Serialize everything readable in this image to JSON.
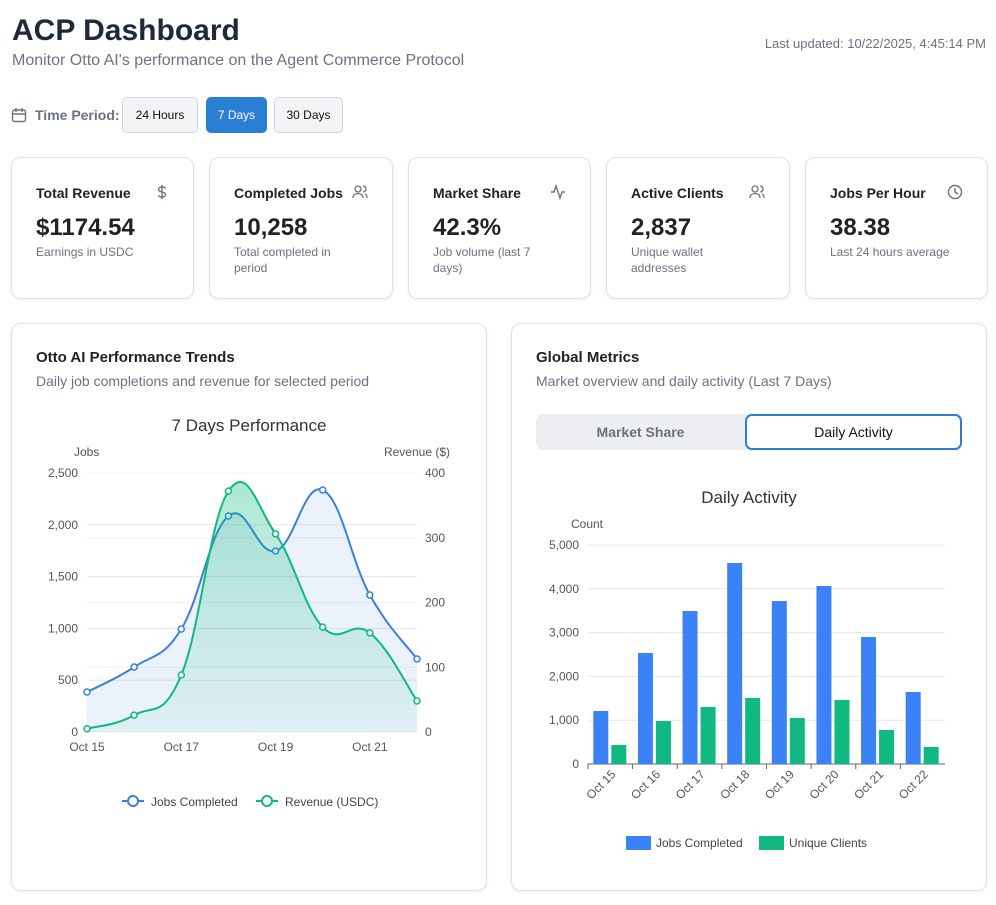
{
  "header": {
    "title": "ACP Dashboard",
    "subtitle": "Monitor Otto AI's performance on the Agent Commerce Protocol",
    "last_updated": "Last updated: 10/22/2025, 4:45:14 PM"
  },
  "time_period": {
    "label": "Time Period:",
    "options": [
      "24 Hours",
      "7 Days",
      "30 Days"
    ]
  },
  "cards": [
    {
      "title": "Total Revenue",
      "value": "$1174.54",
      "note": "Earnings in USDC"
    },
    {
      "title": "Completed Jobs",
      "value": "10,258",
      "note": "Total completed in period"
    },
    {
      "title": "Market Share",
      "value": "42.3%",
      "note": "Job volume (last 7 days)"
    },
    {
      "title": "Active Clients",
      "value": "2,837",
      "note": "Unique wallet addresses"
    },
    {
      "title": "Jobs Per Hour",
      "value": "38.38",
      "note": "Last 24 hours average"
    }
  ],
  "panels": {
    "performance": {
      "title": "Otto AI Performance Trends",
      "subtitle": "Daily job completions and revenue for selected period"
    },
    "global": {
      "title": "Global Metrics",
      "subtitle": "Market overview and daily activity (Last 7 Days)",
      "tabs": [
        "Market Share",
        "Daily Activity"
      ]
    }
  },
  "chart_data": [
    {
      "type": "line",
      "title": "7 Days Performance",
      "y_label": "Jobs",
      "y2_label": "Revenue ($)",
      "categories": [
        "Oct 15",
        null,
        "Oct 17",
        null,
        "Oct 19",
        null,
        "Oct 21",
        null
      ],
      "series": [
        {
          "name": "Jobs Completed",
          "color": "#3b7fd9",
          "values": [
            386,
            627,
            994,
            2085,
            1747,
            2336,
            1322,
            705
          ]
        },
        {
          "name": "Revenue (USDC)",
          "color": "#10b981",
          "axis": "y2",
          "values": [
            5,
            26,
            88,
            372,
            306,
            162,
            153,
            48
          ]
        }
      ],
      "ylim": [
        0,
        2500
      ],
      "yticks": [
        0,
        500,
        {
          "value": 1000,
          "label": "1,000"
        },
        {
          "value": 1500,
          "label": "1,500"
        },
        {
          "value": 2000,
          "label": "2,000"
        },
        {
          "value": 2500,
          "label": "2,500"
        }
      ],
      "y2lim": [
        0,
        400
      ],
      "y2ticks": [
        0,
        100,
        200,
        300,
        400
      ],
      "grid": true
    },
    {
      "type": "bar",
      "title": "Daily Activity",
      "y_label": "Count",
      "categories": [
        "Oct 15",
        "Oct 16",
        "Oct 17",
        "Oct 18",
        "Oct 19",
        "Oct 20",
        "Oct 21",
        "Oct 22"
      ],
      "series": [
        {
          "name": "Jobs Completed",
          "color": "#3b82f6",
          "values": [
            1210,
            2534,
            3493,
            4589,
            3721,
            4064,
            2900,
            1644
          ]
        },
        {
          "name": "Unique Clients",
          "color": "#10b981",
          "values": [
            434,
            982,
            1301,
            1507,
            1050,
            1461,
            776,
            388
          ]
        }
      ],
      "ylim": [
        0,
        5000
      ],
      "yticks": [
        0,
        {
          "value": 1000,
          "label": "1,000"
        },
        {
          "value": 2000,
          "label": "2,000"
        },
        {
          "value": 3000,
          "label": "3,000"
        },
        {
          "value": 4000,
          "label": "4,000"
        },
        {
          "value": 5000,
          "label": "5,000"
        }
      ],
      "grid": true
    }
  ]
}
